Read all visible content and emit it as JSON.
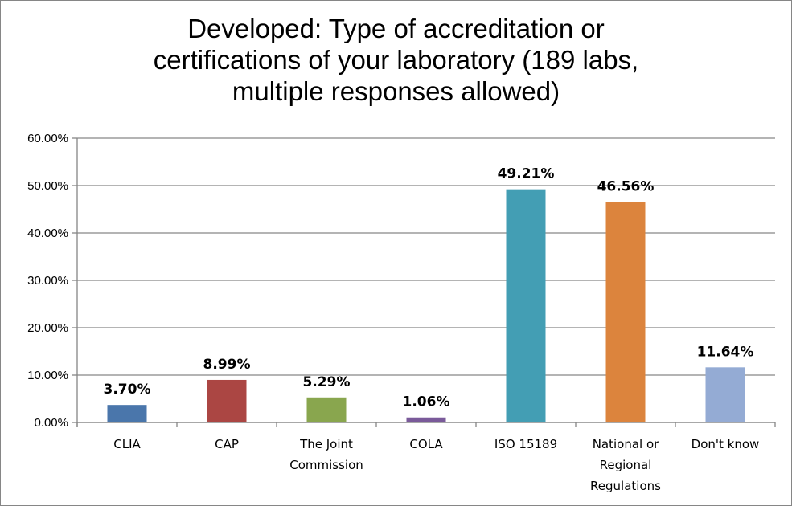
{
  "chart_data": {
    "type": "bar",
    "title": "Developed: Type of accreditation or certifications of your laboratory (189 labs, multiple responses allowed)",
    "title_lines": [
      "Developed: Type of accreditation or",
      "certifications of your laboratory (189 labs,",
      "multiple responses allowed)"
    ],
    "categories": [
      "CLIA",
      "CAP",
      "The Joint Commission",
      "COLA",
      "ISO 15189",
      "National or Regional Regulations",
      "Don't know"
    ],
    "category_lines": [
      [
        "CLIA"
      ],
      [
        "CAP"
      ],
      [
        "The Joint",
        "Commission"
      ],
      [
        "COLA"
      ],
      [
        "ISO 15189"
      ],
      [
        "National or",
        "Regional",
        "Regulations"
      ],
      [
        "Don't know"
      ]
    ],
    "values": [
      3.7,
      8.99,
      5.29,
      1.06,
      49.21,
      46.56,
      11.64
    ],
    "data_labels": [
      "3.70%",
      "8.99%",
      "5.29%",
      "1.06%",
      "49.21%",
      "46.56%",
      "11.64%"
    ],
    "colors": [
      "#4a76ab",
      "#ab4643",
      "#89a64e",
      "#7a5a9a",
      "#439eb4",
      "#dc843d",
      "#94abd4"
    ],
    "ylim": [
      0,
      60
    ],
    "yticks": [
      0,
      10,
      20,
      30,
      40,
      50,
      60
    ],
    "ytick_labels": [
      "0.00%",
      "10.00%",
      "20.00%",
      "30.00%",
      "40.00%",
      "50.00%",
      "60.00%"
    ],
    "xlabel": "",
    "ylabel": "",
    "grid": true,
    "legend": "none"
  }
}
